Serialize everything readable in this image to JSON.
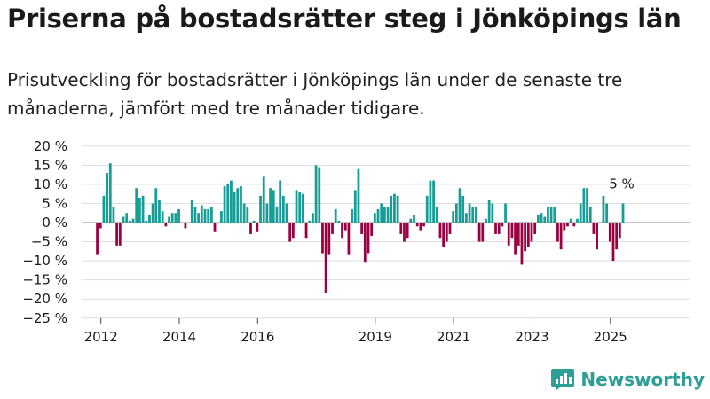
{
  "title": "Priserna på bostadsrätter steg i Jönköpings län",
  "subtitle": "Prisutveckling för bostadsrätter i Jönköpings län under de senaste tre månaderna, jämfört med tre månader tidigare.",
  "brand": {
    "name": "Newsworthy",
    "icon": "newsworthy-logo-icon",
    "color": "#2e9f96"
  },
  "colors": {
    "positive": "#169d96",
    "negative": "#9b0040",
    "grid": "#dddddd"
  },
  "chart_data": {
    "type": "bar",
    "x_start": "2011-12",
    "x_end": "2025-06",
    "x_tick_labels": [
      "2012",
      "2014",
      "2016",
      "2019",
      "2021",
      "2023",
      "2025"
    ],
    "x_tick_dates": [
      "2012-01",
      "2014-01",
      "2016-01",
      "2019-01",
      "2021-01",
      "2023-01",
      "2025-01"
    ],
    "ylim": [
      -25,
      20
    ],
    "y_ticks": [
      20,
      15,
      10,
      5,
      0,
      -5,
      -10,
      -15,
      -20,
      -25
    ],
    "y_tick_labels": [
      "20 %",
      "15 %",
      "10 %",
      "5 %",
      "0 %",
      "−5 %",
      "−10 %",
      "−15 %",
      "−20 %",
      "−25 %"
    ],
    "grid": true,
    "annotation": {
      "label": "5 %",
      "date": "2025-05",
      "value": 5
    },
    "series": [
      {
        "values": [
          -8.5,
          -1.5,
          7,
          13,
          15.5,
          4,
          -6,
          -6,
          1.5,
          2.5,
          0.5,
          1,
          9,
          6.5,
          7,
          0.5,
          2,
          5,
          9,
          6,
          3,
          -1,
          1.5,
          2.5,
          2.5,
          3.5,
          0,
          -1.5,
          0,
          6,
          4,
          2.5,
          4.5,
          3.5,
          3.5,
          4,
          -2.5,
          0,
          3,
          9.5,
          10,
          11,
          8,
          9,
          9.5,
          5,
          4,
          -3,
          0.5,
          -2.5,
          7,
          12,
          5,
          9,
          8.5,
          4,
          11,
          7,
          5,
          -5,
          -4,
          8.5,
          8,
          7.5,
          -4,
          0.5,
          2.5,
          15,
          14.5,
          -8,
          -18.5,
          -8.5,
          -3,
          3.5,
          0.5,
          -4,
          -2,
          -8.5,
          3.5,
          8.5,
          14,
          -3,
          -10.5,
          -8,
          -3.5,
          2.5,
          3.5,
          5,
          4,
          4,
          7,
          7.5,
          7,
          -3,
          -5,
          -4,
          1,
          2,
          -1,
          -2,
          -1,
          7,
          11,
          11,
          4,
          -4,
          -6.5,
          -5,
          -3,
          3,
          5,
          9,
          7,
          2.5,
          5,
          4,
          4,
          -5,
          -5,
          1,
          6,
          5,
          -3,
          -3,
          -1,
          5,
          -6,
          -4,
          -8.5,
          -6,
          -11,
          -7.5,
          -6.5,
          -5,
          -3,
          2,
          2.5,
          1.5,
          4,
          4,
          4,
          -5,
          -7,
          -2,
          -1,
          1,
          -1,
          1,
          5,
          9,
          9,
          4,
          -3,
          -7,
          0,
          7,
          5,
          -5,
          -10,
          -7,
          -4,
          5
        ]
      }
    ]
  }
}
